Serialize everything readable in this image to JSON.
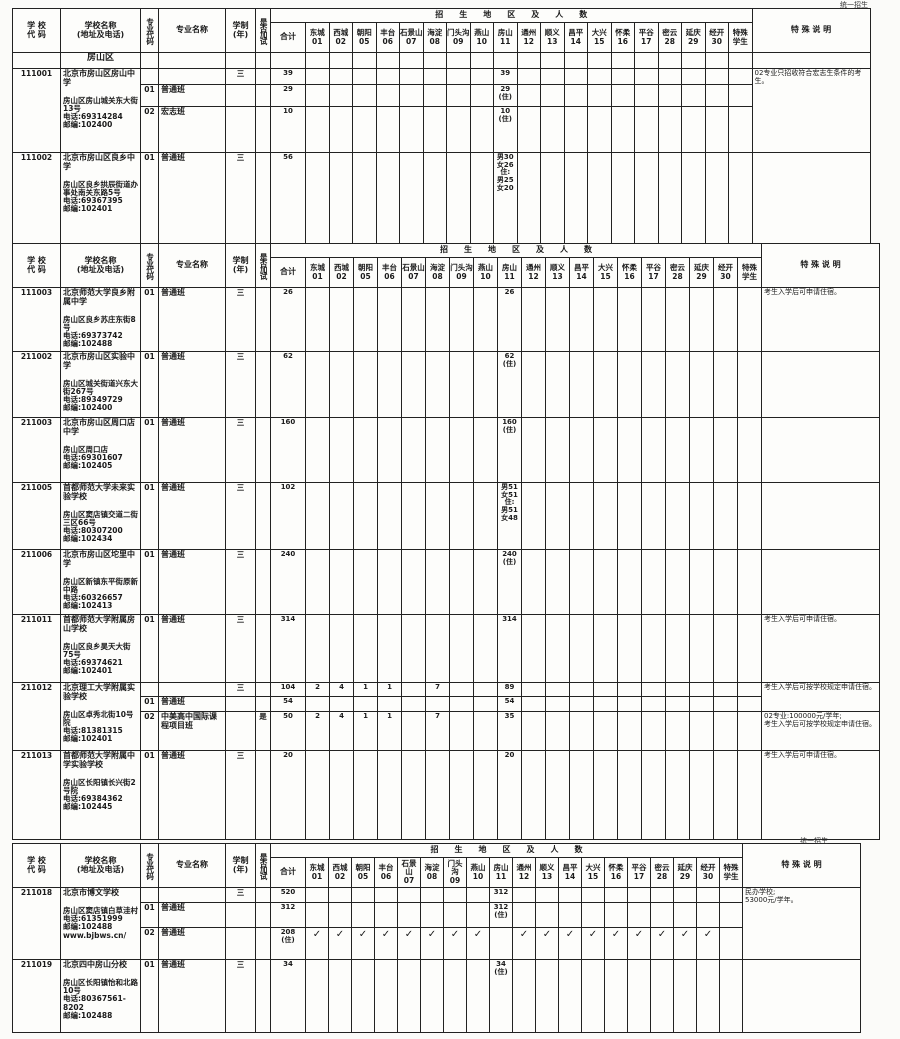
{
  "header": {
    "school_code": "学 校\n代 码",
    "school_name": "学校名称",
    "school_name_sub": "(地址及电话)",
    "major_code": "专业代码",
    "major_name": "专业名称",
    "years": "学制",
    "years_sub": "(年)",
    "exam": "是否加试",
    "region_title": "招　　生　　地　　区　　及　　人　　数",
    "total": "合计",
    "districts": [
      {
        "name": "东城",
        "code": "01"
      },
      {
        "name": "西城",
        "code": "02"
      },
      {
        "name": "朝阳",
        "code": "05"
      },
      {
        "name": "丰台",
        "code": "06"
      },
      {
        "name": "石景山",
        "code": "07"
      },
      {
        "name": "海淀",
        "code": "08"
      },
      {
        "name": "门头沟",
        "code": "09"
      },
      {
        "name": "燕山",
        "code": "10"
      },
      {
        "name": "房山",
        "code": "11"
      },
      {
        "name": "通州",
        "code": "12"
      },
      {
        "name": "顺义",
        "code": "13"
      },
      {
        "name": "昌平",
        "code": "14"
      },
      {
        "name": "大兴",
        "code": "15"
      },
      {
        "name": "怀柔",
        "code": "16"
      },
      {
        "name": "平谷",
        "code": "17"
      },
      {
        "name": "密云",
        "code": "28"
      },
      {
        "name": "延庆",
        "code": "29"
      },
      {
        "name": "经开",
        "code": "30"
      },
      {
        "name": "特殊",
        "code": "学生"
      }
    ],
    "notes": "特 殊 说 明"
  },
  "tables": [
    {
      "top_note": "统一招生",
      "district_label": "房山区",
      "schools": [
        {
          "code": "111001",
          "name": "北京市房山区房山中学",
          "address": "房山区房山城关东大街13号\n电话:69314284\n邮编:102400",
          "notes": "02专业只招收符合宏志生条件的考生。",
          "programs": [
            {
              "code": "",
              "name": "",
              "years": "三",
              "exam": "",
              "total": "39",
              "cells": [
                "",
                "",
                "",
                "",
                "",
                "",
                "",
                "",
                "39",
                "",
                "",
                "",
                "",
                "",
                "",
                "",
                "",
                "",
                ""
              ]
            },
            {
              "code": "01",
              "name": "普通班",
              "years": "",
              "exam": "",
              "total": "29",
              "cells": [
                "",
                "",
                "",
                "",
                "",
                "",
                "",
                "",
                "29\n(住)",
                "",
                "",
                "",
                "",
                "",
                "",
                "",
                "",
                "",
                ""
              ]
            },
            {
              "code": "02",
              "name": "宏志班",
              "years": "",
              "exam": "",
              "total": "10",
              "cells": [
                "",
                "",
                "",
                "",
                "",
                "",
                "",
                "",
                "10\n(住)",
                "",
                "",
                "",
                "",
                "",
                "",
                "",
                "",
                "",
                ""
              ]
            }
          ]
        },
        {
          "code": "111002",
          "name": "北京市房山区良乡中学",
          "address": "房山区良乡拱辰街道办事处南关东路5号\n电话:69367395\n邮编:102401",
          "notes": "",
          "programs": [
            {
              "code": "01",
              "name": "普通班",
              "years": "三",
              "exam": "",
              "total": "56",
              "cells": [
                "",
                "",
                "",
                "",
                "",
                "",
                "",
                "",
                "男30\n女26\n住:\n男25\n女20",
                "",
                "",
                "",
                "",
                "",
                "",
                "",
                "",
                "",
                ""
              ]
            }
          ]
        }
      ]
    },
    {
      "top_note": "",
      "schools": [
        {
          "code": "111003",
          "name": "北京师范大学良乡附属中学",
          "address": "房山区良乡苏庄东街8号\n电话:69373742\n邮编:102488",
          "notes": "考生入学后可申请住宿。",
          "programs": [
            {
              "code": "01",
              "name": "普通班",
              "years": "三",
              "exam": "",
              "total": "26",
              "cells": [
                "",
                "",
                "",
                "",
                "",
                "",
                "",
                "",
                "26",
                "",
                "",
                "",
                "",
                "",
                "",
                "",
                "",
                "",
                ""
              ]
            }
          ]
        },
        {
          "code": "211002",
          "name": "北京市房山区实验中学",
          "address": "房山区城关街道兴东大街267号\n电话:89349729\n邮编:102400",
          "notes": "",
          "programs": [
            {
              "code": "01",
              "name": "普通班",
              "years": "三",
              "exam": "",
              "total": "62",
              "cells": [
                "",
                "",
                "",
                "",
                "",
                "",
                "",
                "",
                "62\n(住)",
                "",
                "",
                "",
                "",
                "",
                "",
                "",
                "",
                "",
                ""
              ]
            }
          ]
        },
        {
          "code": "211003",
          "name": "北京市房山区周口店中学",
          "address": "房山区周口店\n电话:69301607\n邮编:102405",
          "notes": "",
          "programs": [
            {
              "code": "01",
              "name": "普通班",
              "years": "三",
              "exam": "",
              "total": "160",
              "cells": [
                "",
                "",
                "",
                "",
                "",
                "",
                "",
                "",
                "160\n(住)",
                "",
                "",
                "",
                "",
                "",
                "",
                "",
                "",
                "",
                ""
              ]
            }
          ]
        },
        {
          "code": "211005",
          "name": "首都师范大学未来实验学校",
          "address": "房山区窦店镇交道二街三区66号\n电话:80307200\n邮编:102434",
          "notes": "",
          "programs": [
            {
              "code": "01",
              "name": "普通班",
              "years": "三",
              "exam": "",
              "total": "102",
              "cells": [
                "",
                "",
                "",
                "",
                "",
                "",
                "",
                "",
                "男51\n女51\n住:\n男51\n女48",
                "",
                "",
                "",
                "",
                "",
                "",
                "",
                "",
                "",
                ""
              ]
            }
          ]
        },
        {
          "code": "211006",
          "name": "北京市房山区坨里中学",
          "address": "房山区新镇东平街原新中路\n电话:60326657\n邮编:102413",
          "notes": "",
          "programs": [
            {
              "code": "01",
              "name": "普通班",
              "years": "三",
              "exam": "",
              "total": "240",
              "cells": [
                "",
                "",
                "",
                "",
                "",
                "",
                "",
                "",
                "240\n(住)",
                "",
                "",
                "",
                "",
                "",
                "",
                "",
                "",
                "",
                ""
              ]
            }
          ]
        },
        {
          "code": "211011",
          "name": "首都师范大学附属房山学校",
          "address": "房山区良乡昊天大街75号\n电话:69374621\n邮编:102401",
          "notes": "考生入学后可申请住宿。",
          "programs": [
            {
              "code": "01",
              "name": "普通班",
              "years": "三",
              "exam": "",
              "total": "314",
              "cells": [
                "",
                "",
                "",
                "",
                "",
                "",
                "",
                "",
                "314",
                "",
                "",
                "",
                "",
                "",
                "",
                "",
                "",
                "",
                ""
              ]
            }
          ]
        },
        {
          "code": "211012",
          "name": "北京理工大学附属实验学校",
          "address": "房山区卓秀北街10号院\n电话:81381315\n邮编:102401",
          "notes": "考生入学后可按学校规定申请住宿。",
          "notes2": "02专业:100000元/学年;\n考生入学后可按学校规定申请住宿。",
          "programs": [
            {
              "code": "",
              "name": "",
              "years": "三",
              "exam": "",
              "total": "104",
              "cells": [
                "2",
                "4",
                "1",
                "1",
                "",
                "7",
                "",
                "",
                "89",
                "",
                "",
                "",
                "",
                "",
                "",
                "",
                "",
                "",
                ""
              ]
            },
            {
              "code": "01",
              "name": "普通班",
              "years": "",
              "exam": "",
              "total": "54",
              "cells": [
                "",
                "",
                "",
                "",
                "",
                "",
                "",
                "",
                "54",
                "",
                "",
                "",
                "",
                "",
                "",
                "",
                "",
                "",
                ""
              ]
            },
            {
              "code": "02",
              "name": "中美高中国际课程项目班",
              "years": "",
              "exam": "是",
              "total": "50",
              "cells": [
                "2",
                "4",
                "1",
                "1",
                "",
                "7",
                "",
                "",
                "35",
                "",
                "",
                "",
                "",
                "",
                "",
                "",
                "",
                "",
                ""
              ]
            }
          ]
        },
        {
          "code": "211013",
          "name": "首都师范大学附属中学实验学校",
          "address": "房山区长阳镇长兴街2号院\n电话:69384362\n邮编:102445",
          "notes": "考生入学后可申请住宿。",
          "programs": [
            {
              "code": "01",
              "name": "普通班",
              "years": "三",
              "exam": "",
              "total": "20",
              "cells": [
                "",
                "",
                "",
                "",
                "",
                "",
                "",
                "",
                "20",
                "",
                "",
                "",
                "",
                "",
                "",
                "",
                "",
                "",
                ""
              ]
            }
          ]
        }
      ]
    },
    {
      "top_note": "统一招生",
      "schools": [
        {
          "code": "211018",
          "name": "北京市博文学校",
          "address": "房山区窦店镇白草洼村\n电话:61351999\n邮编:102488\nwww.bjbws.cn/",
          "notes": "民办学校;\n53000元/学年。",
          "programs": [
            {
              "code": "",
              "name": "",
              "years": "三",
              "exam": "",
              "total": "520",
              "cells": [
                "",
                "",
                "",
                "",
                "",
                "",
                "",
                "",
                "312",
                "",
                "",
                "",
                "",
                "",
                "",
                "",
                "",
                "",
                ""
              ]
            },
            {
              "code": "01",
              "name": "普通班",
              "years": "",
              "exam": "",
              "total": "312",
              "cells": [
                "",
                "",
                "",
                "",
                "",
                "",
                "",
                "",
                "312\n(住)",
                "",
                "",
                "",
                "",
                "",
                "",
                "",
                "",
                "",
                ""
              ]
            },
            {
              "code": "02",
              "name": "普通班",
              "years": "",
              "exam": "",
              "total": "208\n(住)",
              "cells": [
                "✓",
                "✓",
                "✓",
                "✓",
                "✓",
                "✓",
                "✓",
                "✓",
                "",
                "✓",
                "✓",
                "✓",
                "✓",
                "✓",
                "✓",
                "✓",
                "✓",
                "✓",
                ""
              ]
            }
          ]
        },
        {
          "code": "211019",
          "name": "北京四中房山分校",
          "address": "房山区长阳镇怡和北路10号\n电话:80367561-8202\n邮编:102488",
          "notes": "",
          "programs": [
            {
              "code": "01",
              "name": "普通班",
              "years": "三",
              "exam": "",
              "total": "34",
              "cells": [
                "",
                "",
                "",
                "",
                "",
                "",
                "",
                "",
                "34\n(住)",
                "",
                "",
                "",
                "",
                "",
                "",
                "",
                "",
                "",
                ""
              ]
            }
          ]
        }
      ]
    }
  ]
}
